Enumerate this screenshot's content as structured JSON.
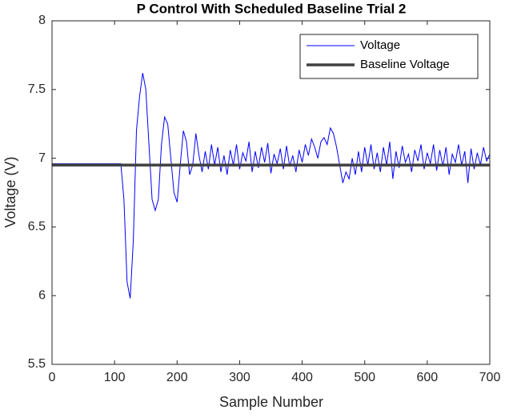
{
  "chart_data": {
    "type": "line",
    "title": "P Control With Scheduled Baseline Trial 2",
    "xlabel": "Sample Number",
    "ylabel": "Voltage (V)",
    "xlim": [
      0,
      700
    ],
    "xticks": [
      0,
      100,
      200,
      300,
      400,
      500,
      600,
      700
    ],
    "ylim": [
      5.5,
      8
    ],
    "yticks": [
      5.5,
      6,
      6.5,
      7,
      7.5,
      8
    ],
    "legend": "northeast",
    "series": [
      {
        "name": "Voltage",
        "color": "#0000ff",
        "width": 1,
        "x": [
          0,
          5,
          10,
          15,
          20,
          25,
          30,
          35,
          40,
          45,
          50,
          55,
          60,
          65,
          70,
          75,
          80,
          85,
          90,
          95,
          100,
          105,
          110,
          115,
          120,
          125,
          130,
          135,
          140,
          145,
          150,
          155,
          160,
          165,
          170,
          175,
          180,
          185,
          190,
          195,
          200,
          205,
          210,
          215,
          220,
          225,
          230,
          235,
          240,
          245,
          250,
          255,
          260,
          265,
          270,
          275,
          280,
          285,
          290,
          295,
          300,
          305,
          310,
          315,
          320,
          325,
          330,
          335,
          340,
          345,
          350,
          355,
          360,
          365,
          370,
          375,
          380,
          385,
          390,
          395,
          400,
          405,
          410,
          415,
          420,
          425,
          430,
          435,
          440,
          445,
          450,
          455,
          460,
          465,
          470,
          475,
          480,
          485,
          490,
          495,
          500,
          505,
          510,
          515,
          520,
          525,
          530,
          535,
          540,
          545,
          550,
          555,
          560,
          565,
          570,
          575,
          580,
          585,
          590,
          595,
          600,
          605,
          610,
          615,
          620,
          625,
          630,
          635,
          640,
          645,
          650,
          655,
          660,
          665,
          670,
          675,
          680,
          685,
          690,
          695,
          700
        ],
        "values": [
          6.96,
          6.96,
          6.96,
          6.96,
          6.96,
          6.96,
          6.96,
          6.96,
          6.96,
          6.96,
          6.96,
          6.96,
          6.96,
          6.96,
          6.96,
          6.96,
          6.96,
          6.96,
          6.96,
          6.96,
          6.96,
          6.96,
          6.96,
          6.7,
          6.1,
          5.98,
          6.4,
          7.2,
          7.45,
          7.62,
          7.5,
          7.1,
          6.7,
          6.62,
          6.7,
          7.1,
          7.3,
          7.25,
          7.0,
          6.75,
          6.68,
          6.95,
          7.2,
          7.12,
          6.88,
          6.95,
          7.18,
          7.02,
          6.9,
          7.05,
          6.92,
          7.1,
          6.95,
          7.08,
          6.9,
          7.02,
          6.88,
          7.06,
          6.95,
          7.1,
          6.92,
          7.04,
          6.98,
          7.12,
          6.9,
          7.05,
          6.93,
          7.08,
          6.97,
          7.11,
          6.89,
          7.03,
          6.96,
          7.07,
          6.92,
          7.09,
          6.94,
          7.02,
          6.9,
          7.06,
          6.97,
          7.1,
          7.02,
          7.14,
          7.08,
          7.0,
          7.12,
          7.15,
          7.1,
          7.22,
          7.18,
          7.08,
          6.95,
          6.82,
          6.9,
          6.85,
          7.0,
          6.88,
          7.05,
          6.9,
          7.08,
          6.95,
          7.1,
          6.92,
          7.04,
          6.9,
          7.08,
          6.95,
          7.12,
          6.85,
          7.05,
          6.93,
          7.09,
          6.97,
          7.03,
          6.9,
          7.06,
          6.98,
          7.1,
          6.92,
          7.04,
          6.96,
          7.1,
          6.91,
          7.06,
          6.94,
          7.08,
          6.88,
          7.03,
          6.97,
          7.1,
          6.95,
          7.05,
          6.82,
          7.07,
          6.92,
          7.04,
          6.95,
          7.08,
          6.98,
          7.03
        ]
      },
      {
        "name": "Baseline Voltage",
        "color": "#404040",
        "width": 3.5,
        "x": [
          0,
          700
        ],
        "values": [
          6.95,
          6.95
        ]
      }
    ]
  }
}
